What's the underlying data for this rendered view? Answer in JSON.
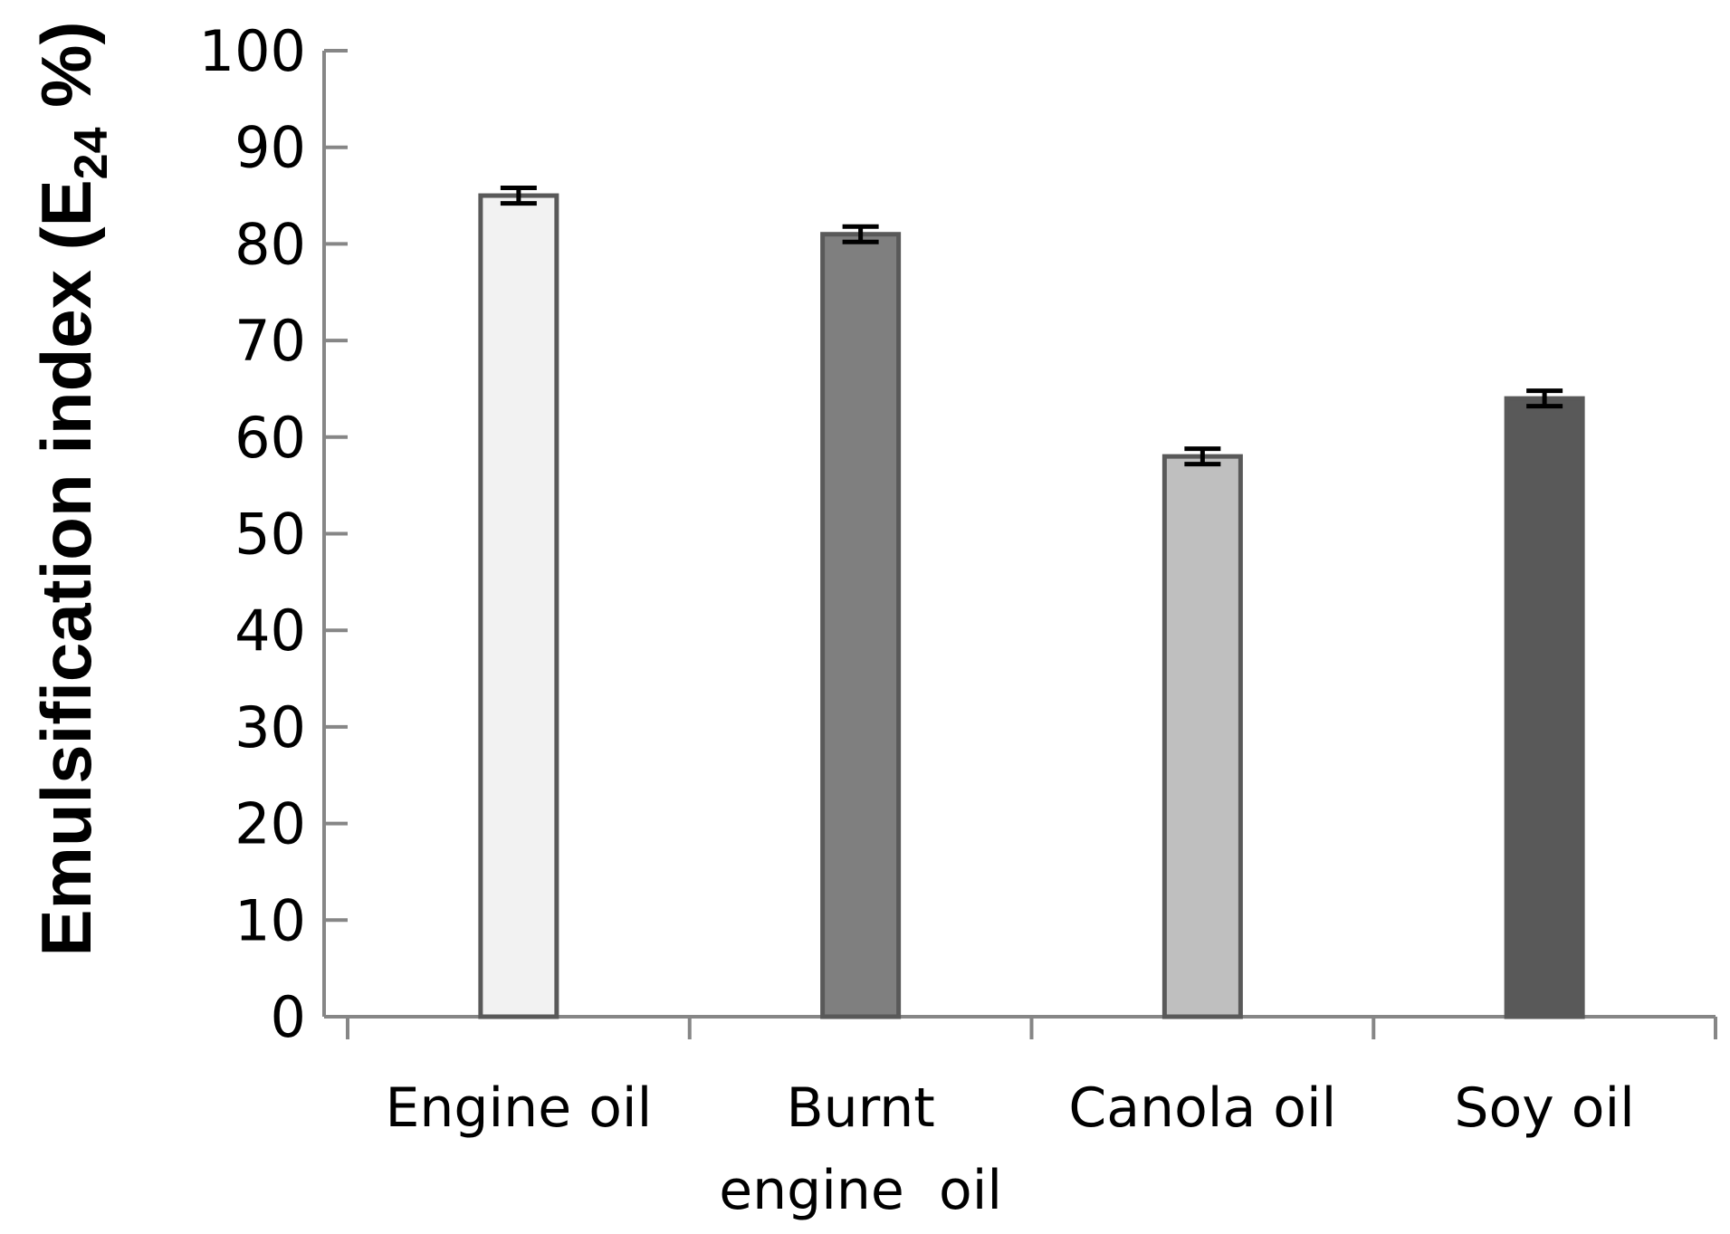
{
  "chart_data": {
    "type": "bar",
    "title": "",
    "xlabel": "",
    "ylabel": {
      "main": "Emulsification index (E",
      "subscript": "24",
      "tail": " %)"
    },
    "ylim": [
      0,
      100
    ],
    "yticks": [
      "0",
      "10",
      "20",
      "30",
      "40",
      "50",
      "60",
      "70",
      "80",
      "90",
      "100"
    ],
    "categories": [
      {
        "lines": [
          "Engine oil"
        ]
      },
      {
        "lines": [
          "Burnt",
          "engine  oil"
        ]
      },
      {
        "lines": [
          "Canola oil"
        ]
      },
      {
        "lines": [
          "Soy oil"
        ]
      }
    ],
    "values": [
      85,
      81,
      58,
      64
    ],
    "errors": [
      0.8,
      0.8,
      0.8,
      0.8
    ],
    "colors": {
      "bars": [
        "#f2f2f2",
        "#7f7f7f",
        "#bfbfbf",
        "#595959"
      ],
      "bar_outline": "#595959",
      "axis": "#868686",
      "error_bar": "#000000"
    },
    "grid": false,
    "legend": "none"
  }
}
